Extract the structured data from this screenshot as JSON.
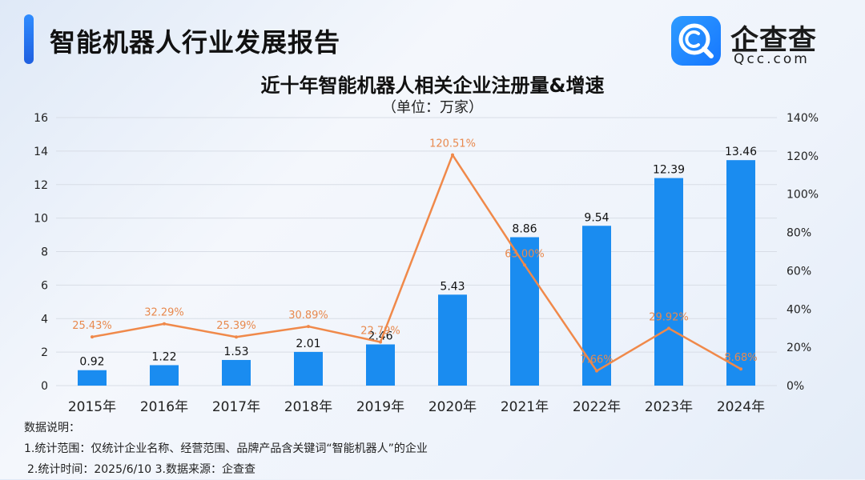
{
  "header": {
    "title": "智能机器人行业发展报告"
  },
  "logo": {
    "cn": "企查查",
    "en": "Qcc.com"
  },
  "chart_data": {
    "type": "bar",
    "title": "近十年智能机器人相关企业注册量&增速",
    "subtitle": "（单位：万家）",
    "categories": [
      "2015年",
      "2016年",
      "2017年",
      "2018年",
      "2019年",
      "2020年",
      "2021年",
      "2022年",
      "2023年",
      "2024年"
    ],
    "bar_labels": [
      "0.92",
      "1.22",
      "1.53",
      "2.01",
      "2.46",
      "5.43",
      "8.86",
      "9.54",
      "12.39",
      "13.46"
    ],
    "line_labels": [
      "25.43%",
      "32.29%",
      "25.39%",
      "30.89%",
      "22.79%",
      "120.51%",
      "63.00%",
      "7.66%",
      "29.92%",
      "8.68%"
    ],
    "series": [
      {
        "type": "bar",
        "axis": "left",
        "values": [
          0.92,
          1.22,
          1.53,
          2.01,
          2.46,
          5.43,
          8.86,
          9.54,
          12.39,
          13.46
        ]
      },
      {
        "type": "line",
        "axis": "right",
        "values": [
          25.43,
          32.29,
          25.39,
          30.89,
          22.79,
          120.51,
          63.0,
          7.66,
          29.92,
          8.68
        ]
      }
    ],
    "yleft": {
      "min": 0,
      "max": 16,
      "ticks": [
        "0",
        "2",
        "4",
        "6",
        "8",
        "10",
        "12",
        "14",
        "16"
      ]
    },
    "yright": {
      "min": 0,
      "max": 140,
      "ticks": [
        "0%",
        "20%",
        "40%",
        "60%",
        "80%",
        "100%",
        "120%",
        "140%"
      ]
    },
    "grid": true,
    "colors": {
      "bar": "#1a8cf0",
      "line": "#f0894a",
      "line_label": "#e8894e",
      "grid": "#d8dde6"
    }
  },
  "notes": {
    "heading": "数据说明：",
    "line1": "1.统计范围：仅统计企业名称、经营范围、品牌产品含关键词“智能机器人”的企业",
    "line2": "2.统计时间：2025/6/10 3.数据来源：企查查"
  }
}
